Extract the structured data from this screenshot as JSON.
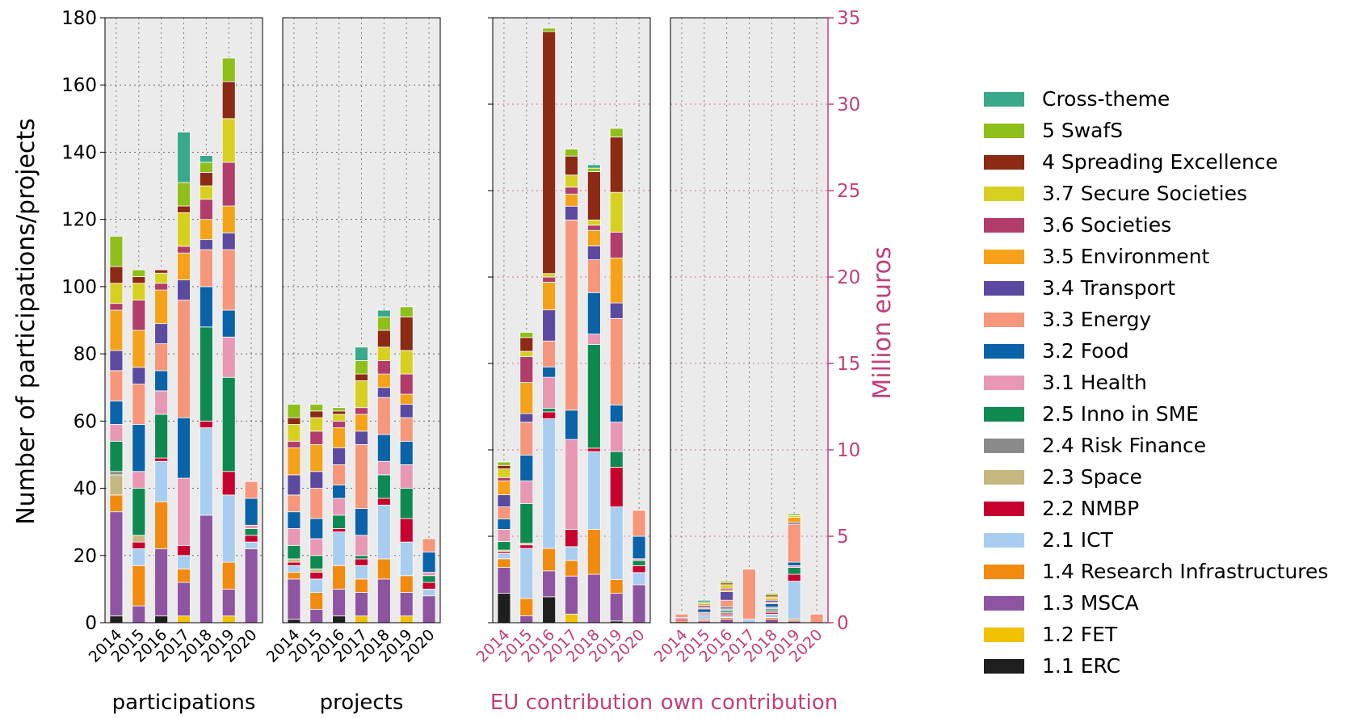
{
  "chart_data": {
    "type": "bar",
    "stacked": true,
    "grid": true,
    "legend_position": "right",
    "years": [
      "2014",
      "2015",
      "2016",
      "2017",
      "2018",
      "2019",
      "2020"
    ],
    "left_axis": {
      "label": "Number of participations/projects",
      "ylim": [
        0,
        180
      ],
      "ticks": [
        "0",
        "20",
        "40",
        "60",
        "80",
        "100",
        "120",
        "140",
        "160",
        "180"
      ]
    },
    "right_axis": {
      "label": "Million euros",
      "ylim": [
        0,
        35
      ],
      "ticks": [
        "0",
        "5",
        "10",
        "15",
        "20",
        "25",
        "30",
        "35"
      ],
      "color": "#c0407a"
    },
    "categories": [
      {
        "name": "1.1 ERC",
        "color": "#1f1f1f"
      },
      {
        "name": "1.2 FET",
        "color": "#f2c100"
      },
      {
        "name": "1.3 MSCA",
        "color": "#8e54a1"
      },
      {
        "name": "1.4 Research Infrastructures",
        "color": "#f28a10"
      },
      {
        "name": "2.1 ICT",
        "color": "#a8cdf0"
      },
      {
        "name": "2.2 NMBP",
        "color": "#c8002e"
      },
      {
        "name": "2.3 Space",
        "color": "#c6b780"
      },
      {
        "name": "2.4 Risk Finance",
        "color": "#8a8a8a"
      },
      {
        "name": "2.5 Inno in SME",
        "color": "#0e8a50"
      },
      {
        "name": "3.1 Health",
        "color": "#e898b4"
      },
      {
        "name": "3.2 Food",
        "color": "#0a62a8"
      },
      {
        "name": "3.3 Energy",
        "color": "#f6967a"
      },
      {
        "name": "3.4 Transport",
        "color": "#5b4aa0"
      },
      {
        "name": "3.5 Environment",
        "color": "#f5a21a"
      },
      {
        "name": "3.6 Societies",
        "color": "#b23c6a"
      },
      {
        "name": "3.7 Secure Societies",
        "color": "#d8d020"
      },
      {
        "name": "4 Spreading Excellence",
        "color": "#8c2a14"
      },
      {
        "name": "5 SwafS",
        "color": "#8fbf1a"
      },
      {
        "name": "Cross-theme",
        "color": "#3aa88a"
      }
    ],
    "panels": [
      {
        "title": "participations",
        "axis": "left",
        "stacks": [
          [
            2,
            0,
            31,
            5,
            0,
            0,
            6,
            1,
            9,
            5,
            7,
            9,
            6,
            12,
            2,
            6,
            5,
            9,
            0
          ],
          [
            0,
            0,
            5,
            12,
            5,
            2,
            2,
            0,
            14,
            5,
            14,
            12,
            5,
            11,
            9,
            5,
            2,
            2,
            0
          ],
          [
            2,
            0,
            20,
            14,
            12,
            1,
            0,
            0,
            13,
            7,
            6,
            8,
            6,
            10,
            2,
            3,
            1,
            0,
            0
          ],
          [
            0,
            2,
            10,
            4,
            4,
            3,
            0,
            0,
            0,
            20,
            18,
            35,
            6,
            8,
            2,
            10,
            2,
            7,
            15
          ],
          [
            0,
            0,
            32,
            0,
            26,
            2,
            0,
            0,
            28,
            0,
            12,
            11,
            3,
            6,
            6,
            4,
            4,
            3,
            2
          ],
          [
            0,
            2,
            8,
            8,
            20,
            7,
            0,
            0,
            28,
            12,
            8,
            18,
            5,
            8,
            13,
            13,
            11,
            7,
            0
          ],
          [
            0,
            0,
            22,
            0,
            2,
            2,
            0,
            0,
            2,
            1,
            8,
            5,
            0,
            0,
            0,
            0,
            0,
            0,
            0
          ]
        ]
      },
      {
        "title": "projects",
        "axis": "left",
        "stacks": [
          [
            1,
            0,
            12,
            2,
            2,
            1,
            1,
            0,
            4,
            5,
            5,
            5,
            6,
            8,
            2,
            5,
            2,
            4,
            0
          ],
          [
            0,
            0,
            4,
            5,
            4,
            2,
            1,
            0,
            4,
            5,
            6,
            9,
            5,
            8,
            4,
            4,
            2,
            2,
            0
          ],
          [
            2,
            0,
            8,
            7,
            10,
            1,
            0,
            0,
            4,
            5,
            4,
            6,
            5,
            6,
            2,
            2,
            1,
            1,
            0
          ],
          [
            0,
            2,
            7,
            4,
            4,
            2,
            0,
            0,
            1,
            6,
            8,
            19,
            4,
            5,
            2,
            8,
            2,
            4,
            4
          ],
          [
            0,
            0,
            13,
            6,
            16,
            2,
            0,
            0,
            7,
            4,
            8,
            11,
            3,
            4,
            4,
            4,
            5,
            4,
            2
          ],
          [
            0,
            2,
            7,
            5,
            10,
            7,
            0,
            0,
            9,
            7,
            7,
            7,
            4,
            3,
            6,
            7,
            10,
            3,
            0
          ],
          [
            0,
            0,
            8,
            0,
            2,
            2,
            0,
            0,
            2,
            1,
            6,
            4,
            0,
            0,
            0,
            0,
            0,
            0,
            0
          ]
        ]
      },
      {
        "title": "EU contribution",
        "axis": "right",
        "stacks": [
          [
            1.7,
            0,
            1.5,
            0.5,
            0.3,
            0.1,
            0.1,
            0,
            0.5,
            0.7,
            0.6,
            0.7,
            0.7,
            0.8,
            0.2,
            0.5,
            0.2,
            0.2,
            0
          ],
          [
            0,
            0,
            0.4,
            1.0,
            2.9,
            0.2,
            0.1,
            0,
            2.3,
            1.3,
            1.5,
            1.9,
            0.5,
            1.8,
            1.5,
            0.3,
            0.8,
            0.3,
            0
          ],
          [
            1.5,
            0,
            1.5,
            1.3,
            7.5,
            0.4,
            0,
            0,
            0.2,
            1.8,
            0.6,
            1.5,
            1.8,
            1.6,
            0.3,
            0.2,
            14.0,
            0.2,
            0
          ],
          [
            0,
            0.5,
            2.2,
            0.9,
            0.8,
            1.0,
            0,
            0,
            0,
            5.2,
            1.7,
            11.0,
            0.8,
            0.7,
            0.4,
            0.7,
            1.1,
            0.4,
            0
          ],
          [
            0,
            0,
            2.8,
            2.6,
            4.5,
            0.2,
            0,
            0,
            6.0,
            0.6,
            2.4,
            1.9,
            0.8,
            0.9,
            0.3,
            0.3,
            2.8,
            0.2,
            0.2
          ],
          [
            0.1,
            0,
            1.6,
            0.8,
            4.2,
            2.3,
            0,
            0,
            0.9,
            1.7,
            1.0,
            5.0,
            0.9,
            2.6,
            1.5,
            2.3,
            3.2,
            0.5,
            0
          ],
          [
            0,
            0,
            2.2,
            0,
            0.7,
            0.4,
            0,
            0,
            0.3,
            0.1,
            1.3,
            1.5,
            0,
            0,
            0,
            0,
            0,
            0,
            0
          ]
        ]
      },
      {
        "title": "own contribution",
        "axis": "right",
        "stacks": [
          [
            0,
            0,
            0,
            0.1,
            0,
            0.1,
            0,
            0,
            0,
            0.1,
            0,
            0.2,
            0,
            0,
            0,
            0,
            0,
            0,
            0
          ],
          [
            0,
            0,
            0.1,
            0.1,
            0.2,
            0,
            0,
            0.1,
            0,
            0.1,
            0.2,
            0.1,
            0.1,
            0.1,
            0,
            0,
            0,
            0.1,
            0.1
          ],
          [
            0,
            0,
            0.2,
            0.1,
            0.1,
            0.1,
            0,
            0.1,
            0.1,
            0.1,
            0.1,
            0.4,
            0.5,
            0.1,
            0.1,
            0.2,
            0.1,
            0.1,
            0
          ],
          [
            0,
            0,
            0,
            0,
            0.2,
            0,
            0,
            0,
            0,
            0,
            0,
            2.9,
            0,
            0,
            0,
            0,
            0,
            0,
            0
          ],
          [
            0,
            0,
            0.2,
            0.1,
            0.2,
            0.1,
            0,
            0.1,
            0.1,
            0.1,
            0.2,
            0.1,
            0.1,
            0.1,
            0,
            0.1,
            0.1,
            0.1,
            0
          ],
          [
            0,
            0,
            0.1,
            0.1,
            2.2,
            0.4,
            0,
            0,
            0.4,
            0.1,
            0.2,
            2.2,
            0.1,
            0.3,
            0,
            0.1,
            0,
            0.1,
            0
          ],
          [
            0,
            0,
            0,
            0,
            0,
            0,
            0,
            0,
            0,
            0,
            0,
            0.5,
            0,
            0,
            0,
            0,
            0,
            0,
            0
          ]
        ]
      }
    ]
  }
}
